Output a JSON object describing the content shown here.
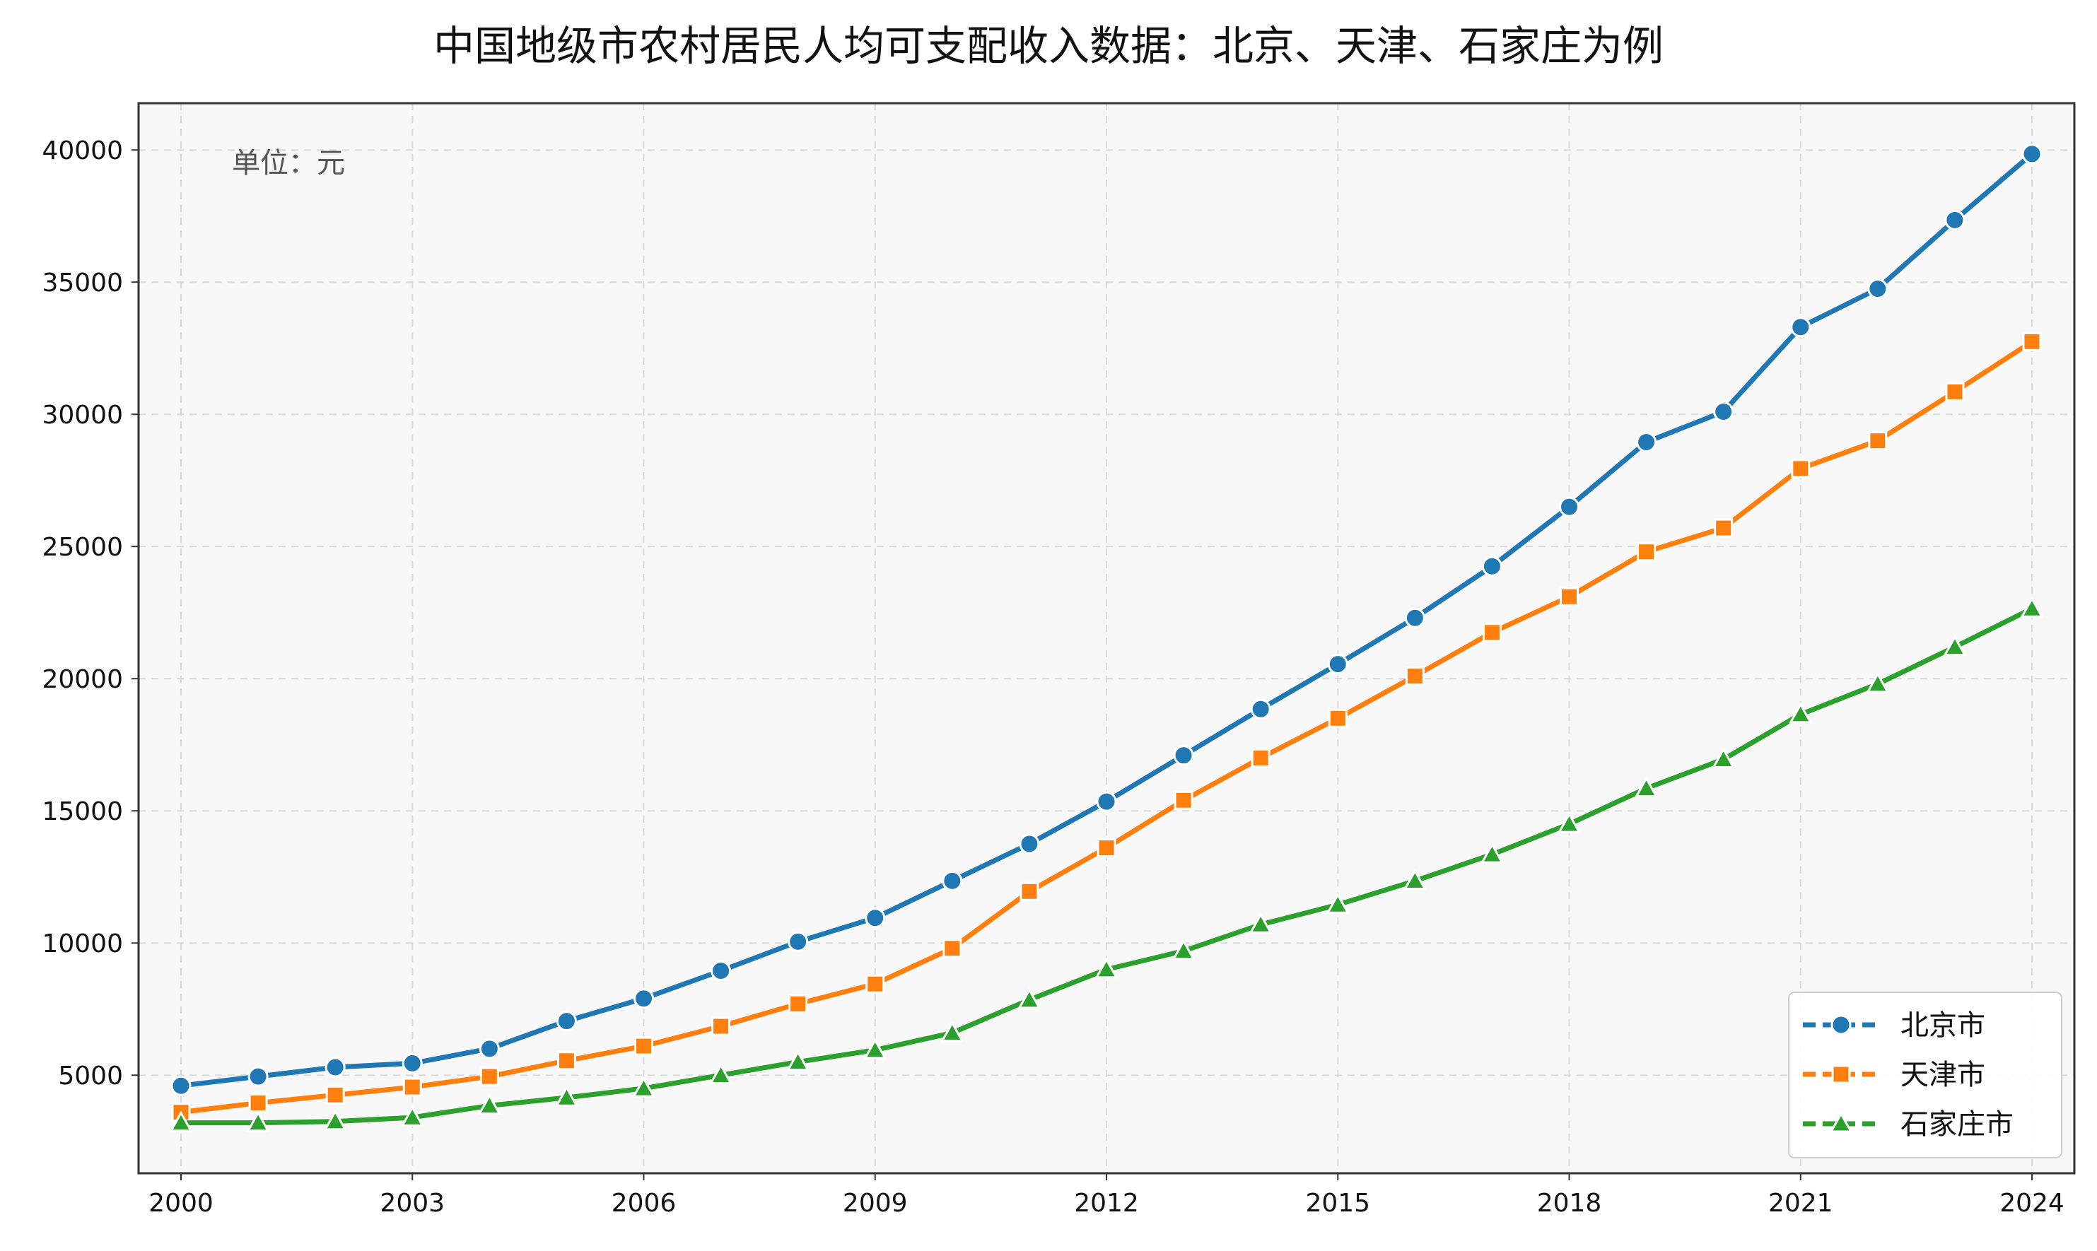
{
  "chart_data": {
    "type": "line",
    "title": "中国地级市农村居民人均可支配收入数据：北京、天津、石家庄为例",
    "annotation": "单位：元",
    "xlabel": "",
    "ylabel": "",
    "x": [
      2000,
      2001,
      2002,
      2003,
      2004,
      2005,
      2006,
      2007,
      2008,
      2009,
      2010,
      2011,
      2012,
      2013,
      2014,
      2015,
      2016,
      2017,
      2018,
      2019,
      2020,
      2021,
      2022,
      2023,
      2024
    ],
    "xticks": [
      2000,
      2003,
      2006,
      2009,
      2012,
      2015,
      2018,
      2021,
      2024
    ],
    "yticks": [
      5000,
      10000,
      15000,
      20000,
      25000,
      30000,
      35000,
      40000
    ],
    "xlim": [
      1999.45,
      2024.55
    ],
    "ylim": [
      1290,
      41770
    ],
    "grid": true,
    "legend_position": "lower-right",
    "series": [
      {
        "name": "北京市",
        "color": "#1f77b4",
        "marker": "circle",
        "values": [
          4600,
          4950,
          5300,
          5450,
          6000,
          7050,
          7900,
          8950,
          10050,
          10950,
          12350,
          13750,
          15350,
          17100,
          18850,
          20550,
          22300,
          24250,
          26500,
          28950,
          30100,
          33300,
          34750,
          37350,
          39850
        ]
      },
      {
        "name": "天津市",
        "color": "#ff7f0e",
        "marker": "square",
        "values": [
          3600,
          3950,
          4250,
          4550,
          4950,
          5550,
          6100,
          6850,
          7700,
          8450,
          9800,
          11950,
          13600,
          15400,
          17000,
          18500,
          20100,
          21750,
          23100,
          24800,
          25700,
          27950,
          29000,
          30850,
          32750
        ]
      },
      {
        "name": "石家庄市",
        "color": "#2ca02c",
        "marker": "triangle",
        "values": [
          3200,
          3200,
          3250,
          3400,
          3850,
          4150,
          4500,
          5000,
          5500,
          5950,
          6600,
          7850,
          9000,
          9700,
          10700,
          11450,
          12350,
          13350,
          14500,
          15850,
          16950,
          18650,
          19800,
          21200,
          22650
        ]
      }
    ]
  }
}
